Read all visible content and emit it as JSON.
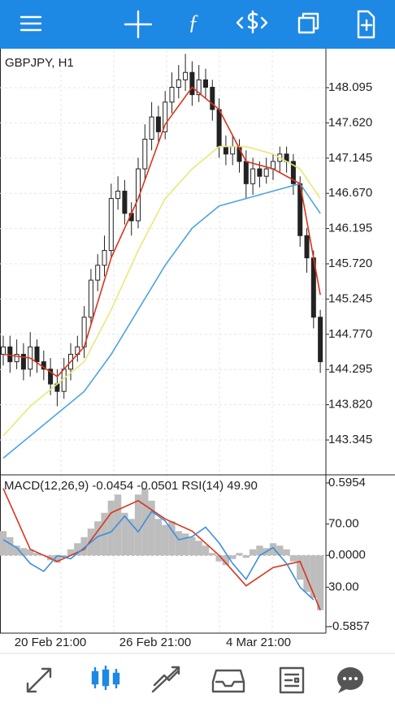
{
  "chart_data": [
    {
      "type": "candlestick",
      "title": "GBPJPY, H1",
      "color": "#222222",
      "grid": true,
      "ylim": [
        142.875,
        148.598
      ],
      "yticks": [
        148.095,
        147.62,
        147.145,
        146.67,
        146.195,
        145.72,
        145.245,
        144.77,
        144.295,
        143.82,
        143.345
      ],
      "ytick_labels": [
        "148.095",
        "147.620",
        "147.145",
        "146.670",
        "146.195",
        "145.720",
        "145.245",
        "144.770",
        "144.295",
        "143.820",
        "143.345"
      ],
      "open": [
        144.5,
        144.6,
        144.4,
        144.5,
        144.3,
        144.6,
        144.4,
        144.3,
        144.1,
        144.0,
        144.3,
        144.5,
        144.6,
        145.0,
        145.5,
        145.7,
        145.9,
        146.6,
        146.7,
        146.4,
        146.3,
        147.0,
        147.4,
        147.7,
        147.5,
        147.9,
        148.1,
        148.2,
        148.3,
        148.0,
        148.2,
        148.1,
        147.8,
        147.3,
        147.2,
        147.3,
        147.1,
        146.8,
        147.0,
        146.9,
        147.0,
        147.1,
        147.2,
        147.1,
        146.8,
        146.1,
        145.8,
        145.0
      ],
      "high": [
        144.75,
        144.75,
        144.7,
        144.65,
        144.8,
        144.7,
        144.55,
        144.45,
        144.3,
        144.45,
        144.65,
        144.75,
        145.15,
        145.65,
        145.85,
        146.1,
        146.8,
        146.9,
        146.85,
        146.55,
        147.15,
        147.6,
        147.9,
        147.85,
        148.05,
        148.3,
        148.4,
        148.55,
        148.45,
        148.4,
        148.35,
        148.2,
        147.95,
        147.45,
        147.45,
        147.4,
        147.25,
        147.15,
        147.1,
        147.15,
        147.2,
        147.3,
        147.3,
        147.2,
        146.9,
        146.2,
        145.9,
        145.1
      ],
      "low": [
        144.35,
        144.25,
        144.3,
        144.15,
        144.2,
        144.25,
        144.15,
        143.95,
        143.8,
        143.9,
        144.15,
        144.4,
        144.45,
        144.9,
        145.35,
        145.55,
        145.8,
        146.45,
        146.25,
        146.1,
        146.2,
        146.85,
        147.25,
        147.35,
        147.4,
        147.75,
        147.95,
        148.05,
        147.85,
        147.9,
        147.95,
        147.65,
        147.15,
        147.05,
        147.05,
        146.95,
        146.6,
        146.65,
        146.75,
        146.8,
        146.85,
        146.95,
        146.95,
        146.65,
        145.95,
        145.6,
        144.85,
        144.25
      ],
      "close": [
        144.6,
        144.4,
        144.5,
        144.3,
        144.6,
        144.4,
        144.3,
        144.1,
        144.0,
        144.3,
        144.5,
        144.6,
        145.0,
        145.5,
        145.7,
        145.9,
        146.6,
        146.7,
        146.4,
        146.3,
        147.0,
        147.4,
        147.7,
        147.5,
        147.9,
        148.1,
        148.2,
        148.3,
        148.0,
        148.2,
        148.1,
        147.8,
        147.3,
        147.2,
        147.3,
        147.1,
        146.8,
        147.0,
        146.9,
        147.0,
        147.1,
        147.2,
        147.1,
        146.8,
        146.1,
        145.8,
        145.0,
        144.4
      ],
      "series": [
        {
          "color": "#e8e87a",
          "x": [
            0,
            4,
            8,
            12,
            16,
            20,
            24,
            28,
            32,
            36,
            40,
            44,
            47
          ],
          "values": [
            143.4,
            143.8,
            144.1,
            144.4,
            145.1,
            145.9,
            146.6,
            147.0,
            147.3,
            147.3,
            147.2,
            147.0,
            146.6
          ]
        },
        {
          "color": "#4fa3e0",
          "x": [
            0,
            4,
            8,
            12,
            16,
            20,
            24,
            28,
            32,
            36,
            40,
            44,
            47
          ],
          "values": [
            143.1,
            143.4,
            143.7,
            144.0,
            144.5,
            145.1,
            145.7,
            146.2,
            146.5,
            146.6,
            146.7,
            146.8,
            146.4
          ]
        },
        {
          "color": "#d9341c",
          "x": [
            0,
            4,
            8,
            12,
            16,
            20,
            24,
            28,
            32,
            36,
            40,
            44,
            47
          ],
          "values": [
            144.5,
            144.45,
            144.2,
            144.6,
            145.8,
            146.6,
            147.6,
            148.1,
            147.8,
            147.1,
            147.0,
            146.8,
            145.3
          ]
        }
      ]
    },
    {
      "type": "indicator",
      "title": "MACD(12,26,9) -0.0454 -0.0501 RSI(14) 49.90",
      "ylim": [
        -0.5857,
        0.5954
      ],
      "yticks": [
        0.5954,
        {
          "value": 0,
          "label": "0.0000"
        },
        -0.5857
      ],
      "y2lim": [
        5,
        96
      ],
      "y2ticks": [
        {
          "value": 70,
          "label": "70.00"
        },
        {
          "value": 30,
          "label": "30.00"
        }
      ],
      "series": [
        {
          "style": "histogram",
          "color": "#bdbdbd",
          "x": [
            0,
            1,
            2,
            3,
            4,
            5,
            6,
            7,
            8,
            9,
            10,
            11,
            12,
            13,
            14,
            15,
            16,
            17,
            18,
            19,
            20,
            21,
            22,
            23,
            24,
            25,
            26,
            27,
            28,
            29,
            30,
            31,
            32,
            33,
            34,
            35,
            36,
            37,
            38,
            39,
            40,
            41,
            42,
            43,
            44,
            45,
            46,
            47
          ],
          "values": [
            0.2,
            0.15,
            0.08,
            0.06,
            0.05,
            0.02,
            0.0,
            -0.04,
            -0.06,
            -0.02,
            0.05,
            0.1,
            0.15,
            0.22,
            0.28,
            0.35,
            0.45,
            0.5,
            0.35,
            0.3,
            0.5,
            0.55,
            0.45,
            0.3,
            0.25,
            0.28,
            0.2,
            0.18,
            0.15,
            0.12,
            0.08,
            0.02,
            -0.05,
            -0.08,
            -0.03,
            0.02,
            -0.02,
            0.05,
            0.08,
            0.06,
            0.1,
            0.08,
            0.05,
            -0.05,
            -0.2,
            -0.3,
            -0.35,
            -0.45
          ]
        },
        {
          "style": "line",
          "color": "#d9341c",
          "x": [
            0,
            4,
            8,
            12,
            16,
            20,
            24,
            28,
            32,
            36,
            40,
            44,
            47
          ],
          "values": [
            0.55,
            0.05,
            -0.05,
            0.05,
            0.35,
            0.45,
            0.3,
            0.2,
            0.0,
            -0.25,
            -0.1,
            -0.05,
            -0.45
          ]
        },
        {
          "style": "line",
          "axis": "y2",
          "color": "#3d8fdc",
          "x": [
            0,
            2,
            4,
            6,
            8,
            10,
            12,
            14,
            16,
            18,
            20,
            22,
            24,
            26,
            28,
            30,
            32,
            34,
            36,
            38,
            40,
            42,
            44,
            46
          ],
          "values": [
            60,
            55,
            45,
            40,
            50,
            48,
            55,
            62,
            65,
            75,
            65,
            78,
            72,
            60,
            62,
            68,
            58,
            45,
            35,
            50,
            55,
            45,
            30,
            22
          ]
        }
      ]
    }
  ],
  "x_labels": [
    "20 Feb 21:00",
    "26 Feb 21:00",
    "4 Mar 21:00"
  ]
}
